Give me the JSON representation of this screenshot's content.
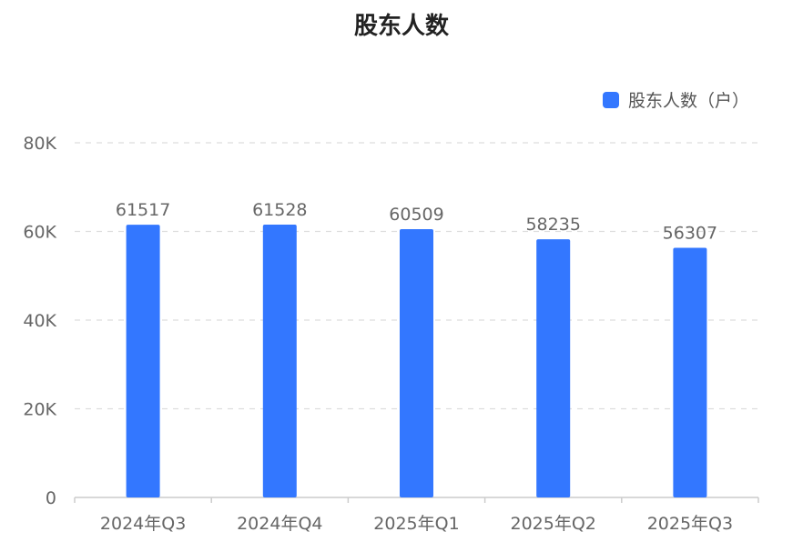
{
  "chart_data": {
    "type": "bar",
    "title": "股东人数",
    "categories": [
      "2024年Q3",
      "2024年Q4",
      "2025年Q1",
      "2025年Q2",
      "2025年Q3"
    ],
    "series": [
      {
        "name": "股东人数（户）",
        "values": [
          61517,
          61528,
          60509,
          58235,
          56307
        ],
        "color": "#3377ff"
      }
    ],
    "ylim": [
      0,
      80000
    ],
    "yticks": [
      0,
      20000,
      40000,
      60000,
      80000
    ],
    "ytick_labels": [
      "0",
      "20K",
      "40K",
      "60K",
      "80K"
    ],
    "grid": true,
    "legend_position": "top-right",
    "data_labels": true
  }
}
